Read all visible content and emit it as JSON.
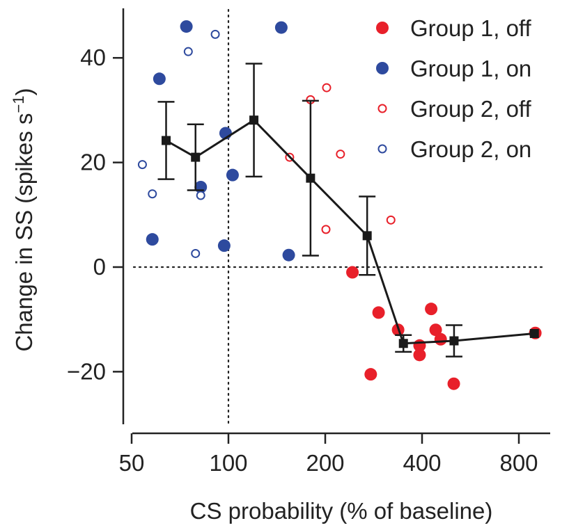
{
  "chart_data": {
    "type": "scatter",
    "xlabel": "CS probability (% of baseline)",
    "ylabel_main": "Change in SS (spikes s",
    "ylabel_sup": "−1",
    "ylabel_close": ")",
    "x_scale": "log2",
    "xlim": [
      50,
      950
    ],
    "ylim": [
      -30,
      50
    ],
    "x_ticks": [
      50,
      100,
      200,
      400,
      800
    ],
    "x_tick_labels": [
      "50",
      "100",
      "200",
      "400",
      "800"
    ],
    "y_ticks": [
      40,
      20,
      0,
      -20
    ],
    "y_tick_labels": [
      "40",
      "20",
      "0",
      "−20"
    ],
    "reference_lines": {
      "x": 100,
      "y": 0,
      "style": "dotted"
    },
    "colors": {
      "red": "#e8202a",
      "blue": "#2e4a9e",
      "mean": "#1a1a1a"
    },
    "legend": {
      "position": "top-right",
      "entries": [
        {
          "label": "Group 1, off",
          "marker": "filled",
          "color": "#e8202a"
        },
        {
          "label": "Group 1, on",
          "marker": "filled",
          "color": "#2e4a9e"
        },
        {
          "label": "Group 2, off",
          "marker": "open",
          "color": "#e8202a"
        },
        {
          "label": "Group 2, on",
          "marker": "open",
          "color": "#2e4a9e"
        }
      ]
    },
    "series": [
      {
        "name": "Group 1, off",
        "marker": "filled",
        "color": "#e8202a",
        "points": [
          [
            243,
            -1
          ],
          [
            293,
            -8.7
          ],
          [
            277,
            -20.5
          ],
          [
            337,
            -12
          ],
          [
            393,
            -15
          ],
          [
            393,
            -16.8
          ],
          [
            427,
            -8
          ],
          [
            441,
            -12
          ],
          [
            457,
            -13.8
          ],
          [
            502,
            -22.3
          ],
          [
            900,
            -12.6
          ]
        ]
      },
      {
        "name": "Group 1, on",
        "marker": "filled",
        "color": "#2e4a9e",
        "points": [
          [
            61,
            36
          ],
          [
            74,
            46
          ],
          [
            58,
            5.3
          ],
          [
            82,
            15.3
          ],
          [
            98,
            25.6
          ],
          [
            97,
            4.1
          ],
          [
            103,
            17.6
          ],
          [
            146,
            45.8
          ],
          [
            154,
            2.3
          ]
        ]
      },
      {
        "name": "Group 2, off",
        "marker": "open",
        "color": "#e8202a",
        "points": [
          [
            155,
            21
          ],
          [
            180,
            32
          ],
          [
            202,
            34.3
          ],
          [
            201,
            7.2
          ],
          [
            223,
            21.6
          ],
          [
            320,
            9
          ]
        ]
      },
      {
        "name": "Group 2, on",
        "marker": "open",
        "color": "#2e4a9e",
        "points": [
          [
            54,
            19.6
          ],
          [
            58,
            14
          ],
          [
            75,
            41.2
          ],
          [
            91,
            44.5
          ],
          [
            82,
            13.7
          ],
          [
            79,
            2.6
          ]
        ]
      },
      {
        "name": "mean",
        "marker": "square-line",
        "color": "#1a1a1a",
        "points": [
          {
            "x": 64,
            "y": 24.2,
            "lo": 16.8,
            "hi": 31.6
          },
          {
            "x": 79,
            "y": 21,
            "lo": 14.7,
            "hi": 27.3
          },
          {
            "x": 120,
            "y": 28.1,
            "lo": 17.3,
            "hi": 38.9
          },
          {
            "x": 180,
            "y": 17,
            "lo": 2.2,
            "hi": 31.8
          },
          {
            "x": 270,
            "y": 6,
            "lo": -1.5,
            "hi": 13.5
          },
          {
            "x": 350,
            "y": -14.6,
            "lo": -16.2,
            "hi": -13
          },
          {
            "x": 503,
            "y": -14.1,
            "lo": -17.1,
            "hi": -11.1
          },
          {
            "x": 894,
            "y": -12.7,
            "lo": null,
            "hi": null
          }
        ]
      }
    ]
  }
}
